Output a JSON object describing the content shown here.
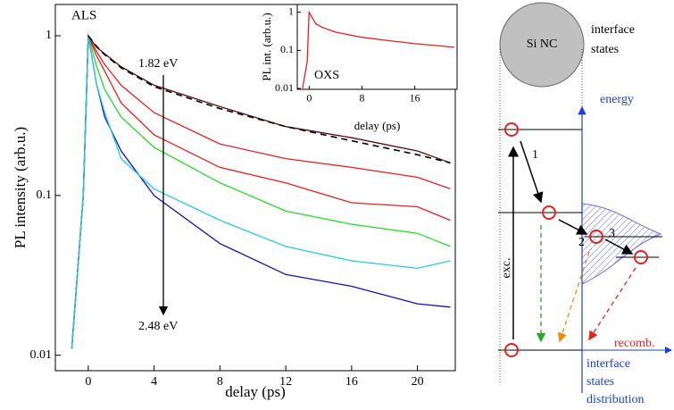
{
  "chart_data": [
    {
      "type": "line",
      "log_y": true,
      "x_label": "delay (ps)",
      "y_label": "PL intensity (arb.u.)",
      "annotations": [
        "ALS",
        "1.82 eV",
        "2.48 eV"
      ],
      "xlim": [
        -2,
        22.3
      ],
      "xticks": [
        0,
        4,
        8,
        12,
        16,
        20
      ],
      "ylim": [
        0.008,
        1.57
      ],
      "yticks": [
        0.01,
        0.1,
        1
      ],
      "x": [
        -1,
        -0.3,
        0,
        0.5,
        1,
        2,
        4,
        8,
        12,
        16,
        20,
        22
      ],
      "series": [
        {
          "color": "#5a0a0a",
          "values": [
            0.011,
            0.1,
            1,
            0.85,
            0.77,
            0.64,
            0.49,
            0.36,
            0.27,
            0.23,
            0.19,
            0.16
          ]
        },
        {
          "color": "#e8211c",
          "values": [
            0.011,
            0.1,
            1,
            0.8,
            0.66,
            0.49,
            0.33,
            0.21,
            0.17,
            0.15,
            0.13,
            0.11
          ]
        },
        {
          "color": "#e8211c",
          "values": [
            0.011,
            0.1,
            1,
            0.75,
            0.6,
            0.38,
            0.24,
            0.15,
            0.12,
            0.09,
            0.085,
            0.07
          ]
        },
        {
          "color": "#22dd22",
          "values": [
            0.011,
            0.1,
            1,
            0.65,
            0.46,
            0.31,
            0.2,
            0.12,
            0.08,
            0.066,
            0.058,
            0.048
          ]
        },
        {
          "color": "#1010c8",
          "values": [
            0.011,
            0.1,
            1,
            0.5,
            0.31,
            0.19,
            0.1,
            0.05,
            0.032,
            0.027,
            0.021,
            0.02
          ]
        },
        {
          "color": "#22cce8",
          "values": [
            0.011,
            0.1,
            1,
            0.5,
            0.33,
            0.17,
            0.11,
            0.07,
            0.048,
            0.039,
            0.035,
            0.039
          ]
        },
        {
          "color": "#000000",
          "dashed": true,
          "values": [
            null,
            null,
            1,
            0.86,
            0.76,
            0.63,
            0.48,
            0.35,
            0.27,
            0.22,
            0.18,
            0.16
          ]
        }
      ]
    },
    {
      "type": "line",
      "log_y": true,
      "x_label": "delay (ps)",
      "y_label": "PL int. (arb.u.)",
      "annotations": [
        "OXS"
      ],
      "xlim": [
        -1.8,
        22.4
      ],
      "xticks": [
        0,
        8,
        16
      ],
      "ylim": [
        0.0095,
        1.6
      ],
      "yticks": [
        0.01,
        0.1,
        1
      ],
      "x": [
        -1,
        -0.3,
        0,
        0.5,
        1,
        2,
        4,
        8,
        12,
        16,
        20,
        22
      ],
      "series": [
        {
          "color": "#e8211c",
          "values": [
            0.01,
            0.05,
            1,
            0.7,
            0.5,
            0.4,
            0.3,
            0.22,
            0.18,
            0.15,
            0.13,
            0.12
          ]
        }
      ]
    }
  ],
  "diagram": {
    "particle": "Si NC",
    "interface_label": [
      "interface",
      "states"
    ],
    "energy": "energy",
    "steps": [
      "1",
      "2",
      "3"
    ],
    "excitation": "exc.",
    "recombination": "recomb.",
    "distribution_label": [
      "interface",
      "states",
      "distribution"
    ]
  }
}
